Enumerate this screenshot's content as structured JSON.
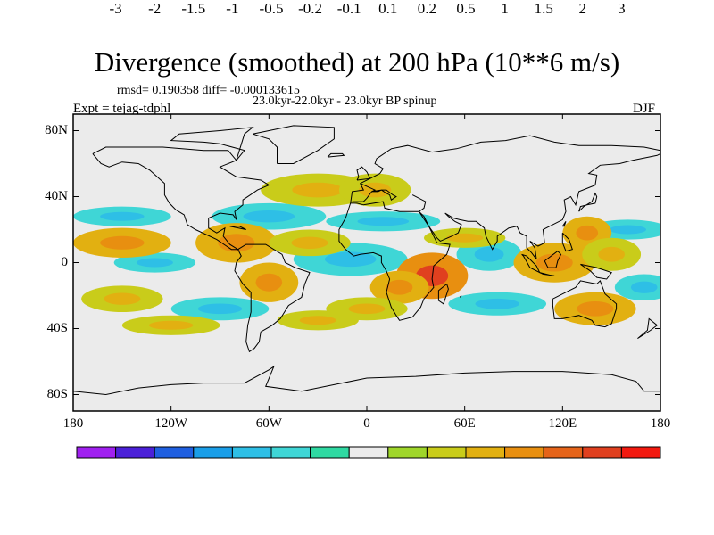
{
  "title": "Divergence (smoothed) at 200 hPa (10**6 m/s)",
  "stats_line": "rmsd= 0.190358 diff= -0.000133615",
  "time_range": "23.0kyr-22.0kyr - 23.0kyr BP spinup",
  "experiment": "Expt = tejag-tdphl",
  "season": "DJF",
  "chart_data": {
    "type": "filled-contour map",
    "title": "Divergence (smoothed) at 200 hPa (10**6 m/s)",
    "x_ticks": [
      "180",
      "120W",
      "60W",
      "0",
      "60E",
      "120E",
      "180"
    ],
    "x_tick_values": [
      -180,
      -120,
      -60,
      0,
      60,
      120,
      180
    ],
    "y_ticks": [
      "80N",
      "40N",
      "0",
      "40S",
      "80S"
    ],
    "y_tick_values": [
      80,
      40,
      0,
      -40,
      -80
    ],
    "xlim": [
      -180,
      180
    ],
    "ylim": [
      -90,
      90
    ],
    "colorbar_labels": [
      "-3",
      "-2",
      "-1.5",
      "-1",
      "-0.5",
      "-0.2",
      "-0.1",
      "0.1",
      "0.2",
      "0.5",
      "1",
      "1.5",
      "2",
      "3"
    ],
    "colorbar_levels": [
      -3,
      -2,
      -1.5,
      -1,
      -0.5,
      -0.2,
      -0.1,
      0.1,
      0.2,
      0.5,
      1,
      1.5,
      2,
      3
    ],
    "colorbar_colors": [
      "#a020f0",
      "#4b20d8",
      "#1f5fe0",
      "#1a9ee8",
      "#2ebfe6",
      "#3fd6d6",
      "#2fd9a2",
      "#ebebeb",
      "#9fd62a",
      "#c9cc1a",
      "#e2b011",
      "#e88f10",
      "#e5641a",
      "#e0401f",
      "#f2190f"
    ],
    "positive_regions": [
      {
        "lon": -30,
        "lat": 44,
        "rlon": 35,
        "rlat": 10,
        "level": 0.3
      },
      {
        "lon": 5,
        "lat": 44,
        "rlon": 22,
        "rlat": 10,
        "level": 0.3
      },
      {
        "lon": -150,
        "lat": 12,
        "rlon": 30,
        "rlat": 9,
        "level": 0.5
      },
      {
        "lon": -80,
        "lat": 12,
        "rlon": 25,
        "rlat": 12,
        "level": 0.5
      },
      {
        "lon": -35,
        "lat": 12,
        "rlon": 25,
        "rlat": 8,
        "level": 0.3
      },
      {
        "lon": 60,
        "lat": 15,
        "rlon": 25,
        "rlat": 6,
        "level": 0.3
      },
      {
        "lon": 40,
        "lat": -8,
        "rlon": 22,
        "rlat": 14,
        "level": 1.2
      },
      {
        "lon": 20,
        "lat": -15,
        "rlon": 18,
        "rlat": 10,
        "level": 0.5
      },
      {
        "lon": 115,
        "lat": 0,
        "rlon": 25,
        "rlat": 12,
        "level": 0.5
      },
      {
        "lon": 135,
        "lat": 18,
        "rlon": 15,
        "rlat": 10,
        "level": 0.5
      },
      {
        "lon": 150,
        "lat": 5,
        "rlon": 18,
        "rlat": 10,
        "level": 0.3
      },
      {
        "lon": -150,
        "lat": -22,
        "rlon": 25,
        "rlat": 8,
        "level": 0.3
      },
      {
        "lon": -60,
        "lat": -12,
        "rlon": 18,
        "rlat": 12,
        "level": 0.7
      },
      {
        "lon": -120,
        "lat": -38,
        "rlon": 30,
        "rlat": 6,
        "level": 0.3
      },
      {
        "lon": -30,
        "lat": -35,
        "rlon": 25,
        "rlat": 6,
        "level": 0.3
      },
      {
        "lon": 0,
        "lat": -28,
        "rlon": 25,
        "rlat": 7,
        "level": 0.3
      },
      {
        "lon": 140,
        "lat": -28,
        "rlon": 25,
        "rlat": 10,
        "level": 0.5
      }
    ],
    "negative_regions": [
      {
        "lon": -150,
        "lat": 28,
        "rlon": 30,
        "rlat": 6,
        "level": -0.3
      },
      {
        "lon": -60,
        "lat": 28,
        "rlon": 35,
        "rlat": 8,
        "level": -0.3
      },
      {
        "lon": 10,
        "lat": 25,
        "rlon": 35,
        "rlat": 6,
        "level": -0.3
      },
      {
        "lon": -10,
        "lat": 2,
        "rlon": 35,
        "rlat": 10,
        "level": -0.5
      },
      {
        "lon": 75,
        "lat": 5,
        "rlon": 20,
        "rlat": 10,
        "level": -0.5
      },
      {
        "lon": -130,
        "lat": 0,
        "rlon": 25,
        "rlat": 6,
        "level": -0.3
      },
      {
        "lon": 160,
        "lat": 20,
        "rlon": 25,
        "rlat": 6,
        "level": -0.3
      },
      {
        "lon": -90,
        "lat": -28,
        "rlon": 30,
        "rlat": 7,
        "level": -0.3
      },
      {
        "lon": 80,
        "lat": -25,
        "rlon": 30,
        "rlat": 7,
        "level": -0.3
      },
      {
        "lon": 170,
        "lat": -15,
        "rlon": 18,
        "rlat": 8,
        "level": -0.5
      }
    ]
  }
}
